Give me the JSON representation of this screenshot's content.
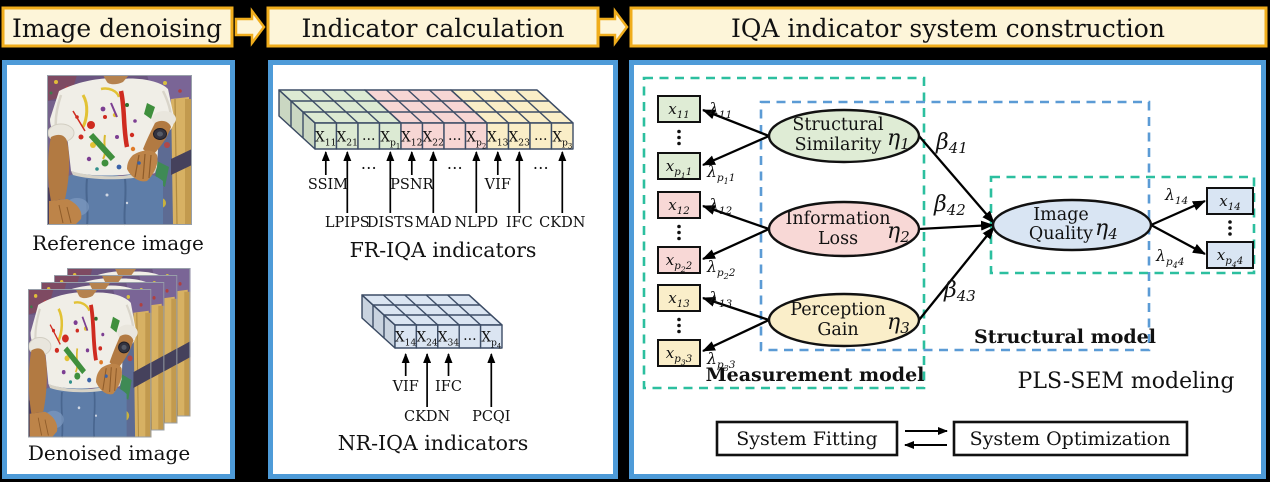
{
  "headers": {
    "step1": "Image denoising",
    "step2": "Indicator calculation",
    "step3": "IQA indicator system construction"
  },
  "panel1": {
    "reference_caption": "Reference image",
    "denoised_caption": "Denoised image"
  },
  "panel2": {
    "fr_cells": [
      [
        [
          "X",
          0
        ],
        [
          "11",
          1
        ]
      ],
      [
        [
          "X",
          0
        ],
        [
          "21",
          1
        ]
      ],
      [
        [
          "…",
          0
        ]
      ],
      [
        [
          "X",
          0
        ],
        [
          "p",
          1
        ],
        [
          "1",
          2
        ]
      ],
      [
        [
          "X",
          0
        ],
        [
          "12",
          1
        ]
      ],
      [
        [
          "X",
          0
        ],
        [
          "22",
          1
        ]
      ],
      [
        [
          "…",
          0
        ]
      ],
      [
        [
          "X",
          0
        ],
        [
          "p",
          1
        ],
        [
          "2",
          2
        ]
      ],
      [
        [
          "X",
          0
        ],
        [
          "13",
          1
        ]
      ],
      [
        [
          "X",
          0
        ],
        [
          "23",
          1
        ]
      ],
      [
        [
          "…",
          0
        ]
      ],
      [
        [
          "X",
          0
        ],
        [
          "p",
          1
        ],
        [
          "3",
          2
        ]
      ]
    ],
    "fr_upper_labels": [
      "SSIM",
      "PSNR",
      "VIF"
    ],
    "fr_lower_labels": [
      "LPIPS",
      "DISTS",
      "MAD",
      "NLPD",
      "IFC",
      "CKDN"
    ],
    "fr_dots": [
      "…",
      "…",
      "…"
    ],
    "fr_caption": "FR-IQA indicators",
    "nr_cells": [
      [
        [
          "X",
          0
        ],
        [
          "14",
          1
        ]
      ],
      [
        [
          "X",
          0
        ],
        [
          "24",
          1
        ]
      ],
      [
        [
          "X",
          0
        ],
        [
          "34",
          1
        ]
      ],
      [
        [
          "…",
          0
        ]
      ],
      [
        [
          "X",
          0
        ],
        [
          "p",
          1
        ],
        [
          "4",
          2
        ]
      ]
    ],
    "nr_upper_labels": [
      "VIF",
      "IFC"
    ],
    "nr_lower_labels": [
      "CKDN",
      "PCQI"
    ],
    "nr_caption": "NR-IQA indicators"
  },
  "panel3": {
    "constructs": [
      {
        "line1": "Structural",
        "line2": "Similarity",
        "eta": [
          [
            "η",
            0
          ],
          [
            "1",
            1
          ]
        ]
      },
      {
        "line1": "Information",
        "line2": "Loss",
        "eta": [
          [
            "η",
            0
          ],
          [
            "2",
            1
          ]
        ]
      },
      {
        "line1": "Perception",
        "line2": "Gain",
        "eta": [
          [
            "η",
            0
          ],
          [
            "3",
            1
          ]
        ]
      },
      {
        "line1": "Image",
        "line2": "Quality",
        "eta": [
          [
            "η",
            0
          ],
          [
            "4",
            1
          ]
        ]
      }
    ],
    "left_boxes": [
      [
        [
          "x",
          0
        ],
        [
          "11",
          1
        ]
      ],
      [
        [
          "x",
          0
        ],
        [
          "p",
          1
        ],
        [
          "1",
          2
        ],
        [
          "1",
          1
        ]
      ],
      [
        [
          "x",
          0
        ],
        [
          "12",
          1
        ]
      ],
      [
        [
          "x",
          0
        ],
        [
          "p",
          1
        ],
        [
          "2",
          2
        ],
        [
          "2",
          1
        ]
      ],
      [
        [
          "x",
          0
        ],
        [
          "13",
          1
        ]
      ],
      [
        [
          "x",
          0
        ],
        [
          "p",
          1
        ],
        [
          "3",
          2
        ],
        [
          "3",
          1
        ]
      ]
    ],
    "right_boxes": [
      [
        [
          "x",
          0
        ],
        [
          "14",
          1
        ]
      ],
      [
        [
          "x",
          0
        ],
        [
          "p",
          1
        ],
        [
          "4",
          2
        ],
        [
          "4",
          1
        ]
      ]
    ],
    "lambdas_left": [
      [
        [
          "λ",
          0
        ],
        [
          "11",
          1
        ]
      ],
      [
        [
          "λ",
          0
        ],
        [
          "p",
          1
        ],
        [
          "1",
          2
        ],
        [
          "1",
          1
        ]
      ],
      [
        [
          "λ",
          0
        ],
        [
          "12",
          1
        ]
      ],
      [
        [
          "λ",
          0
        ],
        [
          "p",
          1
        ],
        [
          "2",
          2
        ],
        [
          "2",
          1
        ]
      ],
      [
        [
          "λ",
          0
        ],
        [
          "13",
          1
        ]
      ],
      [
        [
          "λ",
          0
        ],
        [
          "p",
          1
        ],
        [
          "3",
          2
        ],
        [
          "3",
          1
        ]
      ]
    ],
    "lambdas_right": [
      [
        [
          "λ",
          0
        ],
        [
          "14",
          1
        ]
      ],
      [
        [
          "λ",
          0
        ],
        [
          "p",
          1
        ],
        [
          "4",
          2
        ],
        [
          "4",
          1
        ]
      ]
    ],
    "betas": [
      [
        [
          "β",
          0
        ],
        [
          "41",
          1
        ]
      ],
      [
        [
          "β",
          0
        ],
        [
          "42",
          1
        ]
      ],
      [
        [
          "β",
          0
        ],
        [
          "43",
          1
        ]
      ]
    ],
    "measurement_label": "Measurement model",
    "structural_label": "Structural model",
    "plssem_label": "PLS-SEM modeling",
    "fitting_label": "System Fitting",
    "optimization_label": "System Optimization"
  },
  "colors": {
    "panel_border": "#4e9bd8",
    "header_fill": "#fdf5d9",
    "header_border": "#f0ad1c",
    "cube_green": "#dcead3",
    "cube_pink": "#f7d6d4",
    "cube_yellow": "#faeec7",
    "cube_blue": "#dbe5f2",
    "cube_edge": "#3d4d66",
    "ellipse_green": "#dfecd5",
    "ellipse_pink": "#f8d8d6",
    "ellipse_yellow": "#faeec9",
    "ellipse_blue": "#d9e5f3",
    "measurement": "#2cbf9f",
    "structural": "#5b9bd5"
  }
}
